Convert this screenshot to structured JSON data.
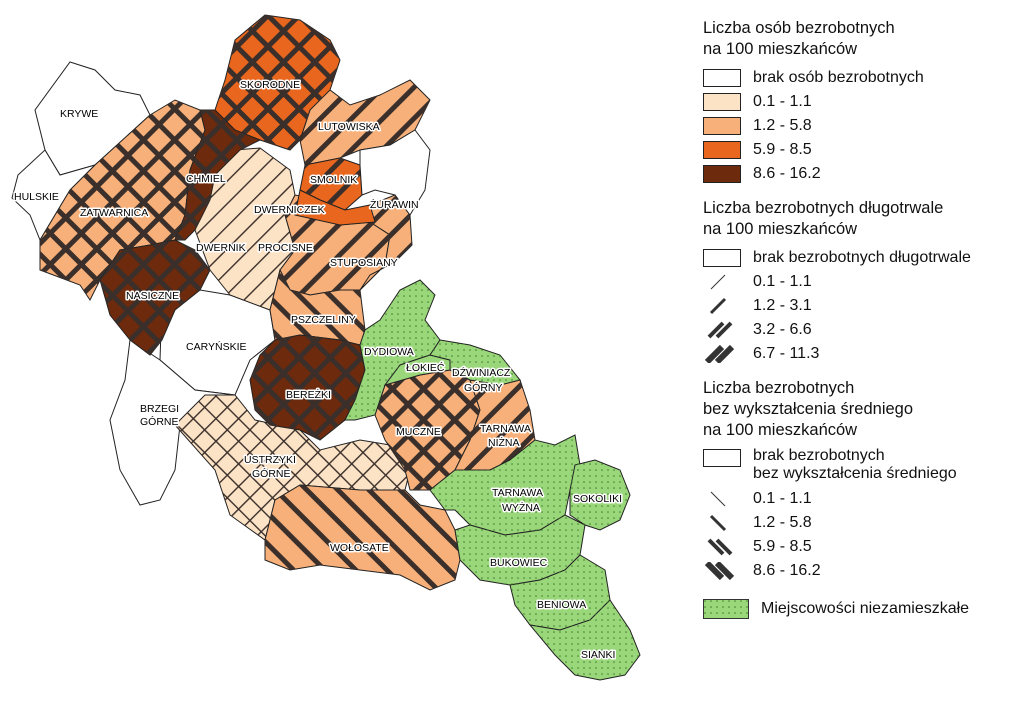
{
  "legend": {
    "unemployed": {
      "title_line1": "Liczba osób bezrobotnych",
      "title_line2": "na 100 mieszkańców",
      "items": [
        {
          "label": "brak osób bezrobotnych",
          "color": "#ffffff"
        },
        {
          "label": "0.1 - 1.1",
          "color": "#fde3c6"
        },
        {
          "label": "1.2 - 5.8",
          "color": "#f7b07a"
        },
        {
          "label": "5.9 - 8.5",
          "color": "#e8661e"
        },
        {
          "label": "8.6 - 16.2",
          "color": "#6e2a0c"
        }
      ]
    },
    "longterm": {
      "title_line1": "Liczba bezrobotnych długotrwale",
      "title_line2": "na 100 mieszkańców",
      "items": [
        {
          "label": "brak bezrobotnych długotrwale"
        },
        {
          "label": "0.1 - 1.1"
        },
        {
          "label": "1.2 - 3.1"
        },
        {
          "label": "3.2 - 6.6"
        },
        {
          "label": "6.7 - 11.3"
        }
      ]
    },
    "education": {
      "title_line1": "Liczba bezrobotnych",
      "title_line2": "bez wykształcenia średniego",
      "title_line3": "na 100 mieszkańców",
      "items": [
        {
          "label_line1": "brak bezrobotnych",
          "label_line2": "bez wykształcenia średniego"
        },
        {
          "label": "0.1 - 1.1"
        },
        {
          "label": "1.2 - 5.8"
        },
        {
          "label": "5.9 - 8.5"
        },
        {
          "label": "8.6 - 16.2"
        }
      ]
    },
    "uninhabited": {
      "label": "Miejscowości niezamieszkałe",
      "color": "#9ad77a"
    }
  },
  "regions": {
    "krywe": "KRYWE",
    "hulskie": "HULSKIE",
    "zatwarnica": "ZATWARNICA",
    "chmiel": "CHMIEL",
    "skorodne": "SKORODNE",
    "lutowiska": "LUTOWISKA",
    "smolnik": "SMOLNIK",
    "dwerniczek": "DWERNICZEK",
    "zurawin": "ŻURAWIN",
    "dwernik": "DWERNIK",
    "procisne": "PROCISNE",
    "stuposiany": "STUPOSIANY",
    "nasiczne": "NASICZNE",
    "pszczeliny": "PSZCZELINY",
    "carynskie": "CARYŃSKIE",
    "dydiowa": "DYDIOWA",
    "lokiec": "ŁOKIEĆ",
    "dzwiniacz": "DŹWINIACZ",
    "gorny": "GÓRNY",
    "berezki": "BEREŻKI",
    "brzegi1": "BRZEGI",
    "brzegi2": "GÓRNE",
    "muczne": "MUCZNE",
    "tarnawa_n1": "TARNAWA",
    "tarnawa_n2": "NIŻNA",
    "ustrzyki1": "USTRZYKI",
    "ustrzyki2": "GÓRNE",
    "tarnawa_w1": "TARNAWA",
    "tarnawa_w2": "WYŻNA",
    "sokoliki": "SOKOLIKI",
    "wolosate": "WOŁOSATE",
    "bukowiec": "BUKOWIEC",
    "beniowa": "BENIOWA",
    "sianki": "SIANKI"
  }
}
